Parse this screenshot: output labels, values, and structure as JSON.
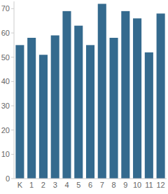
{
  "chart_data": {
    "type": "bar",
    "categories": [
      "K",
      "1",
      "2",
      "3",
      "4",
      "5",
      "6",
      "7",
      "8",
      "9",
      "10",
      "11",
      "12"
    ],
    "values": [
      55,
      58,
      51,
      59,
      69,
      63,
      55,
      72,
      58,
      69,
      66,
      52,
      68
    ],
    "color": "#346a8e",
    "ylim": [
      0,
      73
    ],
    "yticks": [
      0,
      10,
      20,
      30,
      40,
      50,
      60,
      70
    ],
    "grid": false
  }
}
